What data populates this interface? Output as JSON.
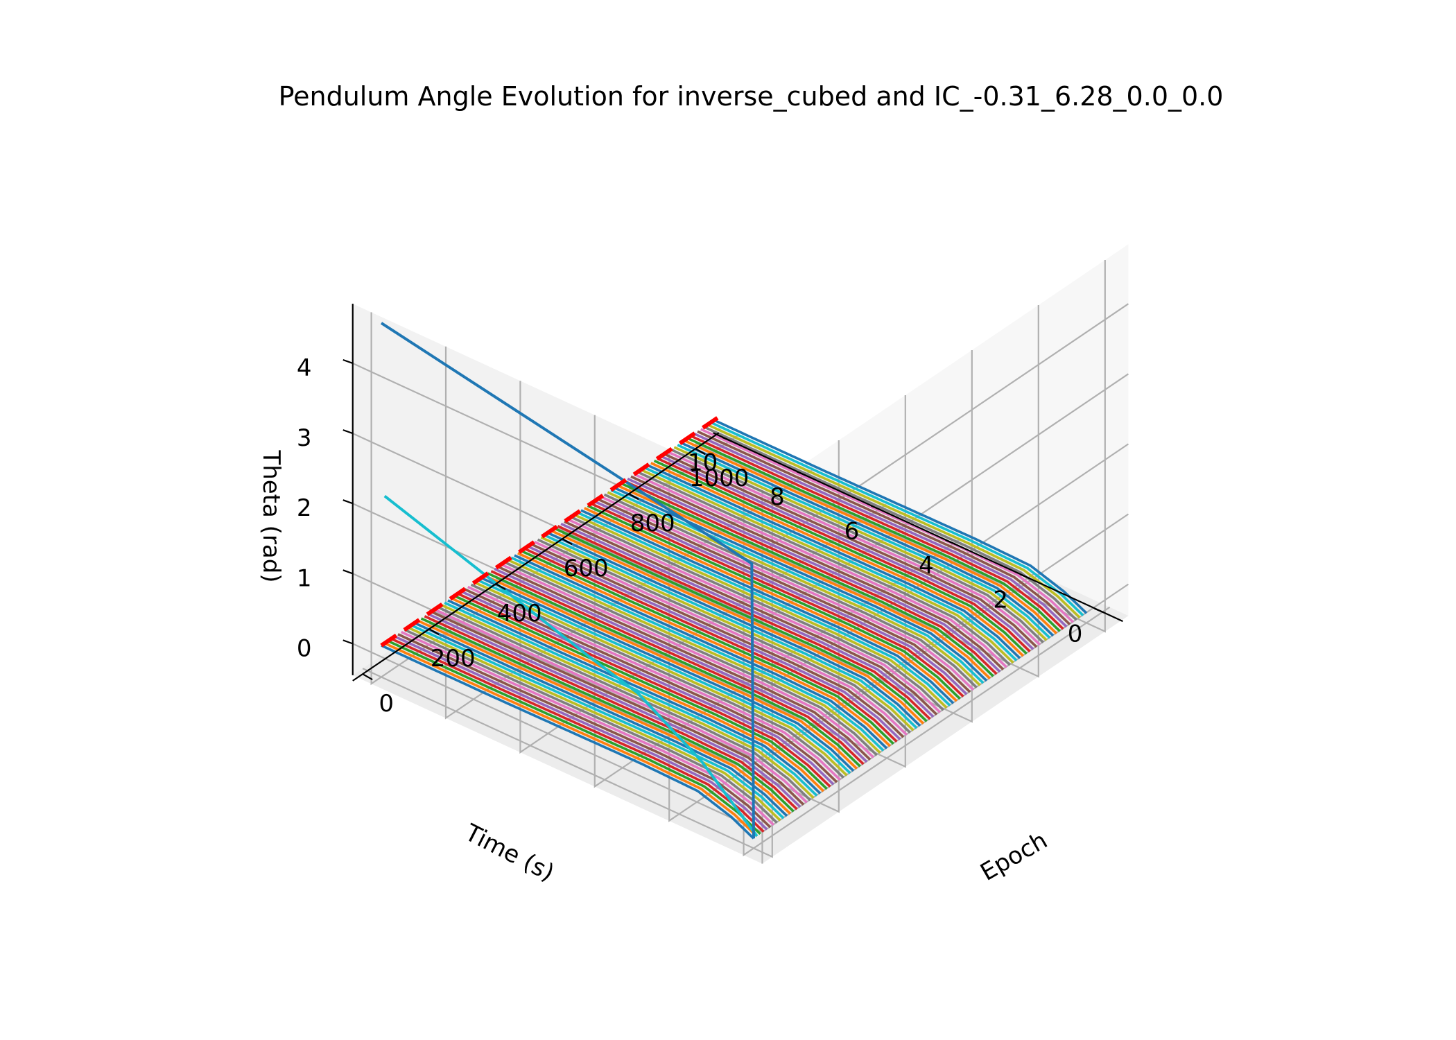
{
  "chart_data": {
    "type": "line",
    "projection": "3d",
    "title": "Pendulum Angle Evolution for inverse_cubed and IC_-0.31_6.28_0.0_0.0",
    "x_axis": {
      "label": "Epoch",
      "ticks": [
        "0",
        "200",
        "400",
        "600",
        "800",
        "1000"
      ],
      "range": [
        0,
        1000
      ]
    },
    "y_axis": {
      "label": "Time (s)",
      "ticks": [
        "0",
        "2",
        "4",
        "6",
        "8",
        "10"
      ],
      "range": [
        0,
        10
      ]
    },
    "z_axis": {
      "label": "Theta (rad)",
      "ticks": [
        "0",
        "1",
        "2",
        "3",
        "4"
      ],
      "range": [
        0,
        4.5
      ]
    },
    "grid": true,
    "palette": [
      "#1f77b4",
      "#ff7f0e",
      "#2ca02c",
      "#d62728",
      "#9467bd",
      "#8c564b",
      "#e377c2",
      "#7f7f7f",
      "#bcbd22",
      "#17becf"
    ],
    "epochs": {
      "start": 0,
      "stop": 1000,
      "step": 10
    },
    "highlight_series": [
      {
        "epoch": 0,
        "color": "#1f77b4",
        "time": [
          0,
          0.05,
          10
        ],
        "theta": [
          -0.31,
          3.6,
          4.6
        ]
      },
      {
        "epoch": 10,
        "color": "#17becf",
        "time": [
          0,
          1.5,
          3.2,
          4.5,
          10
        ],
        "theta": [
          -0.31,
          0.4,
          0.95,
          1.15,
          2.1
        ]
      }
    ],
    "converged_curve": {
      "time": [
        0,
        0.6,
        1.5,
        3,
        5,
        7,
        10
      ],
      "theta": [
        -0.31,
        -0.15,
        0.0,
        0.02,
        0.01,
        0.0,
        0.0
      ]
    },
    "reference_line": {
      "label": "",
      "theta": 0,
      "time": [
        0,
        10
      ],
      "color": "#ff0000",
      "style": "dashed"
    }
  }
}
